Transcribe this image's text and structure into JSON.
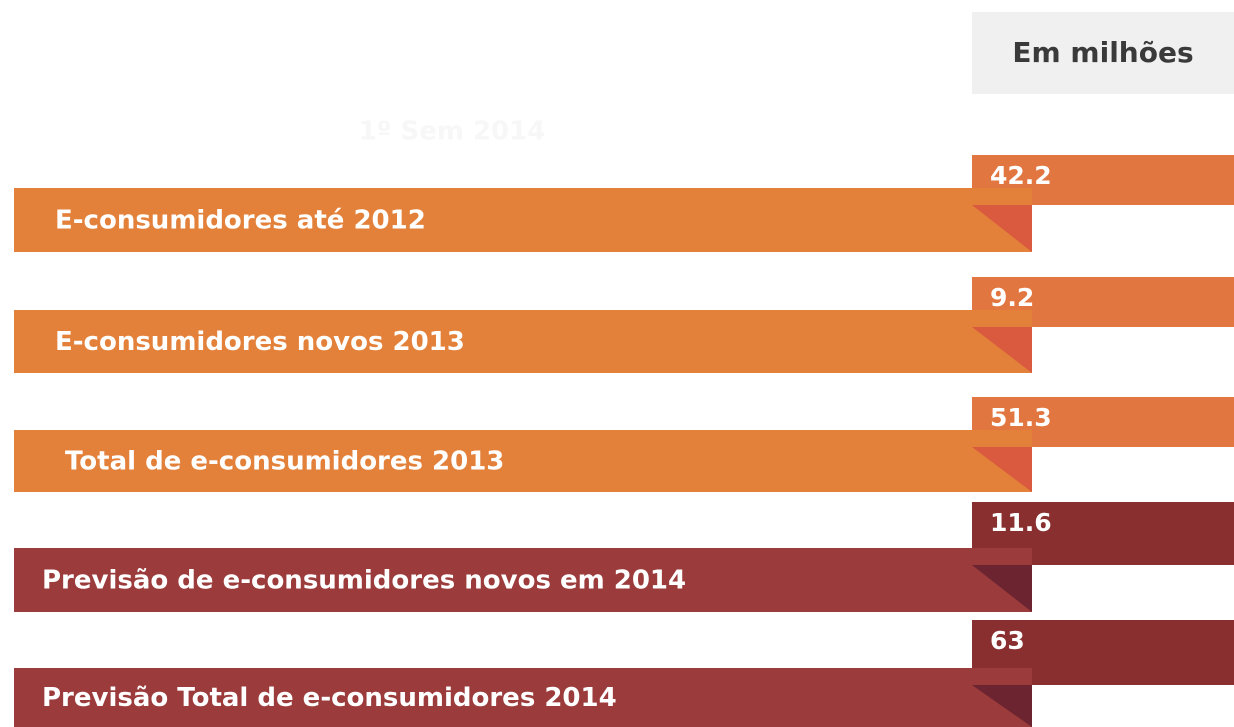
{
  "header": {
    "unit": "Em milhões",
    "period": "1º Sem 2014"
  },
  "rows": [
    {
      "label": "E-consumidores até 2012",
      "value": 42.2
    },
    {
      "label": "E-consumidores novos 2013",
      "value": 9.2
    },
    {
      "label": "Total de e-consumidores 2013",
      "value": 51.3
    },
    {
      "label": "Previsão de e-consumidores novos em 2014",
      "value": 11.6
    },
    {
      "label": "Previsão Total de e-consumidores 2014",
      "value": 63
    }
  ]
}
